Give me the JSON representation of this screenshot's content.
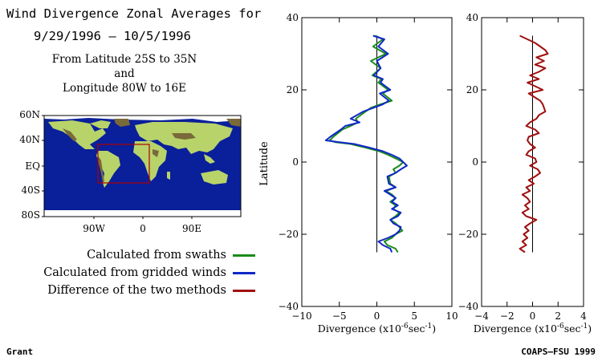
{
  "title": {
    "line1": "Wind Divergence Zonal Averages for",
    "line2": "9/29/1996 – 10/5/1996",
    "region_line1": "From Latitude 25S to 35N",
    "region_line2": "and",
    "region_line3": "Longitude 80W to 16E"
  },
  "map": {
    "lat_labels": [
      "60N",
      "40N",
      "EQ",
      "40S",
      "80S"
    ],
    "lon_labels": [
      "90W",
      "0",
      "90E"
    ],
    "colors": {
      "ocean": "#0a1f9a",
      "land": "#b8d36a",
      "highland": "#7a6a3a",
      "ice": "#ffffff",
      "box": "#b00000"
    }
  },
  "legend": [
    {
      "label": "Calculated from swaths",
      "color": "#1a8a1a"
    },
    {
      "label": "Calculated from gridded winds",
      "color": "#1028c8"
    },
    {
      "label": "Difference of the two methods",
      "color": "#a01010"
    }
  ],
  "footer": {
    "left": "Grant",
    "right": "COAPS–FSU 1999"
  },
  "chart_data": [
    {
      "type": "line",
      "ylabel": "Latitude",
      "xlabel": "Divergence (x10",
      "xlabel_sup1": "-6",
      "xlabel_mid": "sec",
      "xlabel_sup2": "-1",
      "xlabel_end": ")",
      "xlim": [
        -10,
        10
      ],
      "ylim": [
        -40,
        40
      ],
      "xticks": [
        -10,
        -5,
        0,
        5,
        10
      ],
      "yticks": [
        -40,
        -20,
        0,
        20,
        40
      ],
      "zero_line": {
        "x": 0,
        "y_from": -25,
        "y_to": 35
      },
      "series": [
        {
          "name": "Calculated from swaths",
          "color": "#1a8a1a",
          "points": [
            [
              -0.2,
              35
            ],
            [
              0.8,
              34
            ],
            [
              -0.5,
              32
            ],
            [
              1.2,
              30
            ],
            [
              -0.8,
              28
            ],
            [
              0.5,
              26
            ],
            [
              -0.6,
              24
            ],
            [
              0.6,
              23
            ],
            [
              0.2,
              22
            ],
            [
              1.5,
              20
            ],
            [
              0.8,
              19
            ],
            [
              2.0,
              17
            ],
            [
              0.5,
              16
            ],
            [
              -0.8,
              15
            ],
            [
              -1.5,
              14
            ],
            [
              -2.8,
              12
            ],
            [
              -2.5,
              11
            ],
            [
              -3.5,
              10
            ],
            [
              -4.6,
              9
            ],
            [
              -5.2,
              8
            ],
            [
              -5.8,
              7
            ],
            [
              -6.3,
              6
            ],
            [
              -5.5,
              5.5
            ],
            [
              -3.5,
              5
            ],
            [
              -1.5,
              4
            ],
            [
              0.3,
              3
            ],
            [
              1.5,
              2
            ],
            [
              2.5,
              1
            ],
            [
              3.5,
              0
            ],
            [
              3.0,
              -1
            ],
            [
              2.2,
              -2
            ],
            [
              2.5,
              -3
            ],
            [
              1.6,
              -4
            ],
            [
              1.8,
              -6
            ],
            [
              2.5,
              -7
            ],
            [
              1.2,
              -8
            ],
            [
              2.0,
              -9
            ],
            [
              2.5,
              -10
            ],
            [
              1.8,
              -11
            ],
            [
              2.5,
              -12
            ],
            [
              2.2,
              -13
            ],
            [
              3.0,
              -14
            ],
            [
              2.5,
              -15
            ],
            [
              1.8,
              -16
            ],
            [
              2.5,
              -17
            ],
            [
              3.0,
              -18
            ],
            [
              3.4,
              -19
            ],
            [
              2.5,
              -20
            ],
            [
              2.0,
              -21
            ],
            [
              1.0,
              -22
            ],
            [
              1.4,
              -23
            ],
            [
              2.5,
              -24
            ],
            [
              2.8,
              -25
            ]
          ]
        },
        {
          "name": "Calculated from gridded winds",
          "color": "#1028c8",
          "points": [
            [
              -0.5,
              35
            ],
            [
              1.0,
              34
            ],
            [
              0.2,
              32
            ],
            [
              1.5,
              30
            ],
            [
              0.0,
              28
            ],
            [
              0.5,
              26
            ],
            [
              -0.4,
              24
            ],
            [
              0.8,
              23
            ],
            [
              0.5,
              22
            ],
            [
              1.8,
              20
            ],
            [
              0.4,
              19
            ],
            [
              1.6,
              17
            ],
            [
              0.8,
              16
            ],
            [
              -0.5,
              15
            ],
            [
              -1.8,
              14
            ],
            [
              -3.5,
              12
            ],
            [
              -2.3,
              11
            ],
            [
              -4.2,
              10
            ],
            [
              -4.8,
              9
            ],
            [
              -5.5,
              8
            ],
            [
              -6.2,
              7
            ],
            [
              -6.8,
              6
            ],
            [
              -5.0,
              5.5
            ],
            [
              -3.0,
              5
            ],
            [
              -1.0,
              4
            ],
            [
              0.8,
              3
            ],
            [
              2.0,
              2
            ],
            [
              3.0,
              1
            ],
            [
              4.0,
              -1
            ],
            [
              3.2,
              -2
            ],
            [
              2.5,
              -3
            ],
            [
              1.4,
              -4
            ],
            [
              1.6,
              -6
            ],
            [
              2.5,
              -7
            ],
            [
              1.0,
              -8
            ],
            [
              1.8,
              -9
            ],
            [
              2.5,
              -10
            ],
            [
              2.0,
              -11
            ],
            [
              2.8,
              -12
            ],
            [
              2.0,
              -13
            ],
            [
              3.2,
              -14
            ],
            [
              2.8,
              -15
            ],
            [
              1.8,
              -16
            ],
            [
              2.2,
              -17
            ],
            [
              3.2,
              -18
            ],
            [
              3.0,
              -19
            ],
            [
              2.5,
              -20
            ],
            [
              1.5,
              -21
            ],
            [
              0.2,
              -22
            ],
            [
              0.8,
              -23
            ],
            [
              1.8,
              -24
            ],
            [
              2.0,
              -25
            ]
          ]
        }
      ]
    },
    {
      "type": "line",
      "ylabel": "",
      "xlabel": "Divergence (x10",
      "xlabel_sup1": "-6",
      "xlabel_mid": "sec",
      "xlabel_sup2": "-1",
      "xlabel_end": ")",
      "xlim": [
        -4,
        4
      ],
      "ylim": [
        -40,
        40
      ],
      "xticks": [
        -4,
        -2,
        0,
        2,
        4
      ],
      "yticks": [
        -40,
        -20,
        0,
        20,
        40
      ],
      "zero_line": {
        "x": 0,
        "y_from": -25,
        "y_to": 35
      },
      "series": [
        {
          "name": "Difference of the two methods",
          "color": "#a01010",
          "points": [
            [
              -1.0,
              35
            ],
            [
              0.2,
              33
            ],
            [
              1.0,
              31
            ],
            [
              1.2,
              30
            ],
            [
              0.3,
              29
            ],
            [
              0.9,
              28
            ],
            [
              0.2,
              27
            ],
            [
              1.0,
              26
            ],
            [
              0.5,
              25
            ],
            [
              -0.2,
              24
            ],
            [
              0.5,
              23
            ],
            [
              -0.4,
              22
            ],
            [
              0.2,
              21
            ],
            [
              0.8,
              20
            ],
            [
              -0.3,
              19
            ],
            [
              0.6,
              17
            ],
            [
              0.8,
              16
            ],
            [
              1.0,
              14
            ],
            [
              0.5,
              13
            ],
            [
              0.3,
              12
            ],
            [
              -0.2,
              11
            ],
            [
              -0.5,
              10
            ],
            [
              0.2,
              9
            ],
            [
              0.5,
              8
            ],
            [
              -0.3,
              7
            ],
            [
              -0.4,
              6
            ],
            [
              -0.2,
              5
            ],
            [
              0.2,
              4
            ],
            [
              -0.3,
              3
            ],
            [
              -0.5,
              2
            ],
            [
              0.2,
              1
            ],
            [
              0.3,
              0
            ],
            [
              -0.2,
              -1
            ],
            [
              0.4,
              -2
            ],
            [
              0.6,
              -3
            ],
            [
              0.2,
              -4
            ],
            [
              -0.3,
              -5
            ],
            [
              0.1,
              -6
            ],
            [
              -0.5,
              -7
            ],
            [
              -0.2,
              -8
            ],
            [
              -0.8,
              -9
            ],
            [
              -0.4,
              -10
            ],
            [
              -0.2,
              -11
            ],
            [
              -0.6,
              -12
            ],
            [
              -0.3,
              -13
            ],
            [
              -0.8,
              -14
            ],
            [
              -0.5,
              -15
            ],
            [
              0.3,
              -16
            ],
            [
              -0.2,
              -17
            ],
            [
              -0.6,
              -18
            ],
            [
              -0.3,
              -19
            ],
            [
              -0.7,
              -20
            ],
            [
              -0.4,
              -21
            ],
            [
              -0.8,
              -22
            ],
            [
              -0.5,
              -23
            ],
            [
              -1.0,
              -24
            ],
            [
              -0.6,
              -25
            ]
          ]
        }
      ]
    }
  ]
}
